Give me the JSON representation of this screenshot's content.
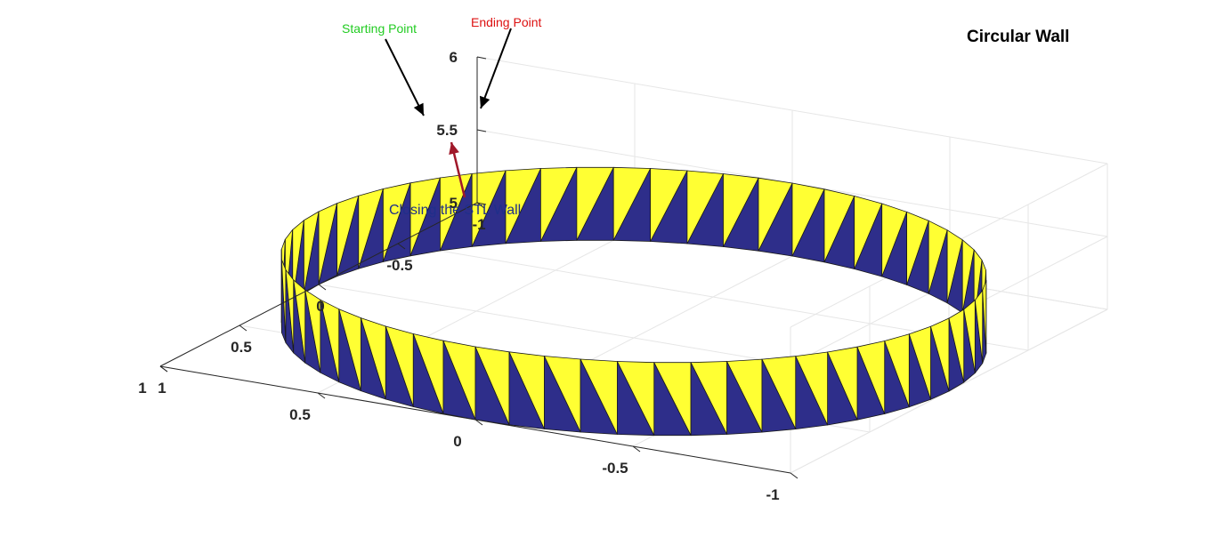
{
  "chart_data": {
    "type": "surface",
    "title": "Circular Wall",
    "xlabel": "",
    "ylabel": "",
    "zlabel": "",
    "x_ticks": [
      "1",
      "0.5",
      "0",
      "-0.5",
      "-1"
    ],
    "y_ticks": [
      "1",
      "0.5",
      "0",
      "-0.5",
      "-1"
    ],
    "z_ticks": [
      "6",
      "5.5",
      "5"
    ],
    "xlim": [
      -1,
      1
    ],
    "ylim": [
      -1,
      1
    ],
    "zlim": [
      5,
      6
    ],
    "grid": true,
    "wall": {
      "radius": 1,
      "z_bottom": 5,
      "z_top": 5.5,
      "segments": 60,
      "colors": {
        "yellow": "#ffff33",
        "blue": "#2e2e8a"
      }
    },
    "annotations": {
      "start": {
        "text": "Starting Point",
        "color": "#22cc22"
      },
      "end": {
        "text": "Ending Point",
        "color": "#dd1111"
      },
      "closing": {
        "text": "Closing the STL Wall",
        "color": "#1f2f8a",
        "arrow_color": "#a0182a"
      }
    }
  }
}
